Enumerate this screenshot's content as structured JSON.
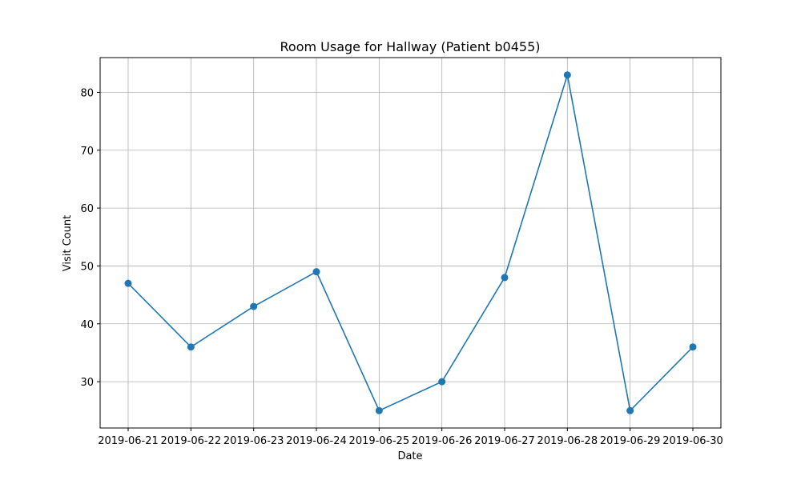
{
  "chart_data": {
    "type": "line",
    "title": "Room Usage for Hallway (Patient b0455)",
    "xlabel": "Date",
    "ylabel": "Visit Count",
    "x": [
      "2019-06-21",
      "2019-06-22",
      "2019-06-23",
      "2019-06-24",
      "2019-06-25",
      "2019-06-26",
      "2019-06-27",
      "2019-06-28",
      "2019-06-29",
      "2019-06-30"
    ],
    "series": [
      {
        "values": [
          47,
          36,
          43,
          49,
          25,
          30,
          48,
          83,
          25,
          36
        ],
        "color": "#1f77b4",
        "marker": "circle"
      }
    ],
    "yticks": [
      30,
      40,
      50,
      60,
      70,
      80
    ],
    "ylim": [
      22,
      86
    ],
    "grid": true
  }
}
